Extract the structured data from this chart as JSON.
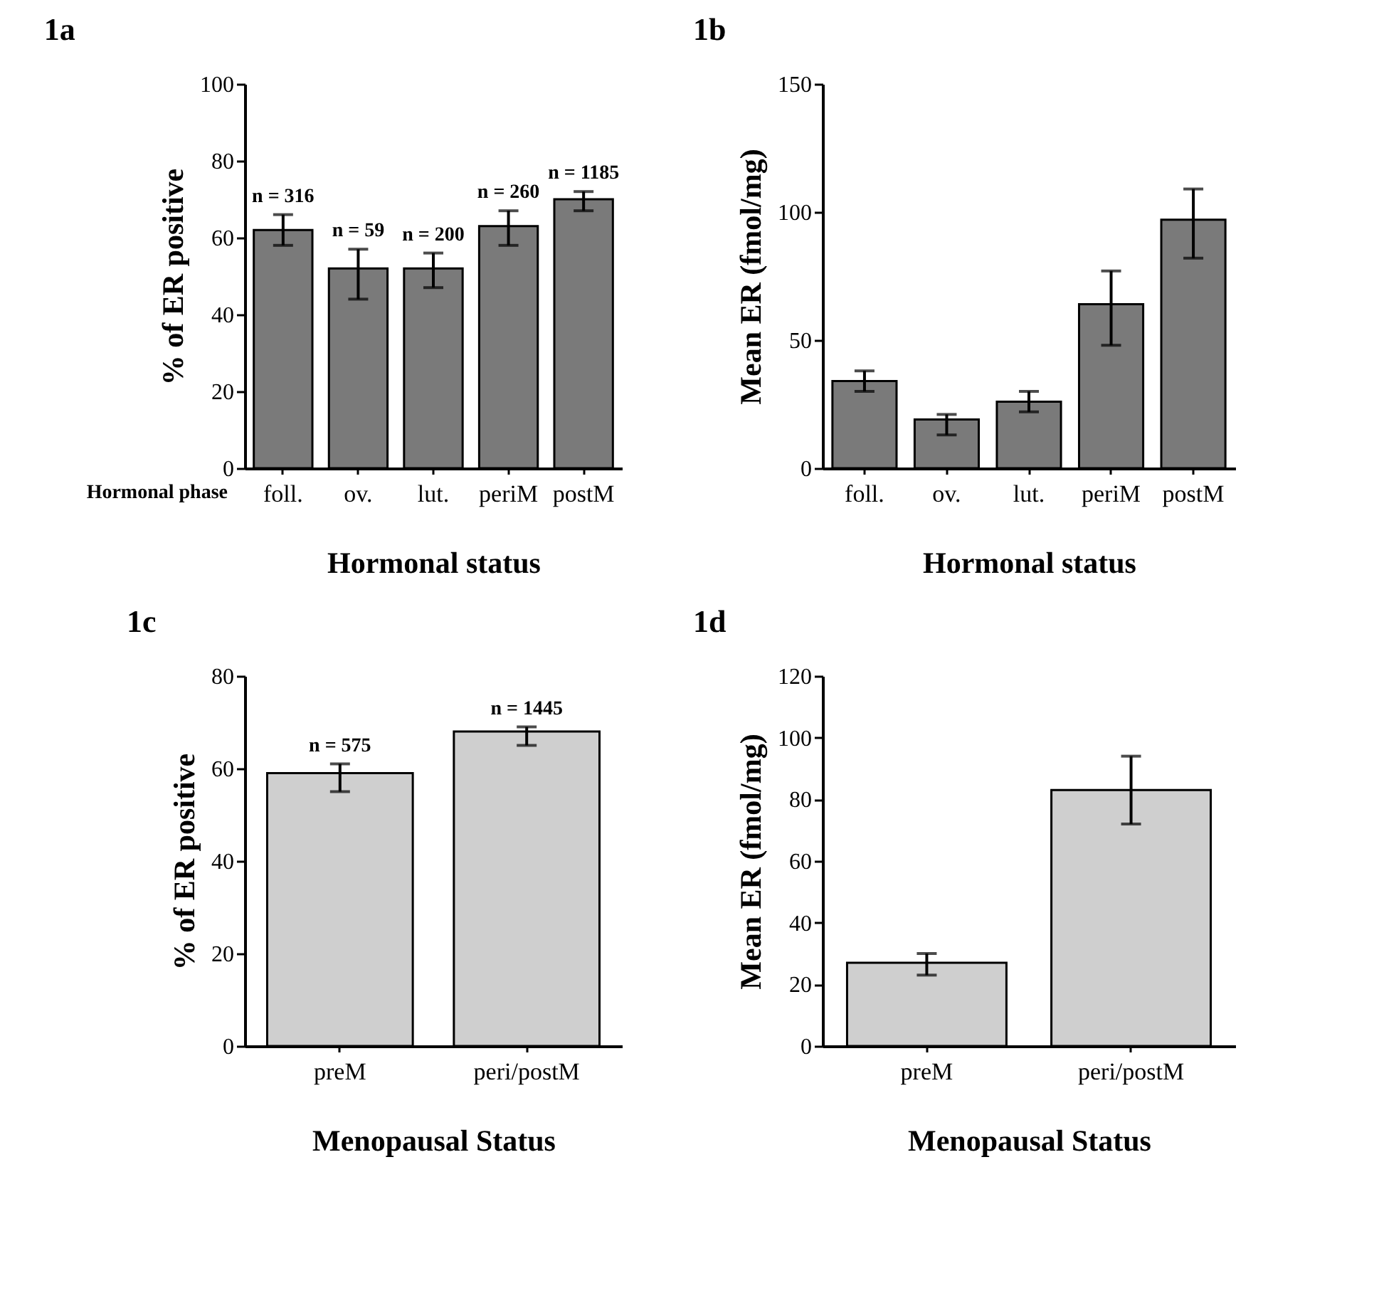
{
  "chart_data": [
    {
      "type": "bar",
      "title": "1a",
      "xlabel": "Hormonal status",
      "ylabel": "% of ER positive",
      "categories": [
        "foll.",
        "ov.",
        "lut.",
        "periM",
        "postM"
      ],
      "values": [
        62,
        52,
        52,
        63,
        70
      ],
      "errors": [
        4,
        [
          44,
          57
        ],
        [
          47,
          56
        ],
        [
          58,
          67
        ],
        [
          67,
          72
        ]
      ],
      "color": "#7a7a7a",
      "ylim": [
        0,
        100
      ],
      "yticks": [
        0,
        20,
        40,
        60,
        80,
        100
      ],
      "annotations": [
        "n = 316",
        "n = 59",
        "n = 200",
        "n = 260",
        "n = 1185",
        "Hormonal phase"
      ]
    },
    {
      "type": "bar",
      "title": "1b",
      "xlabel": "Hormonal status",
      "ylabel": "Mean ER (fmol/mg)",
      "categories": [
        "foll.",
        "ov.",
        "lut.",
        "periM",
        "postM"
      ],
      "values": [
        34,
        19,
        26,
        64,
        97
      ],
      "errors": [
        4,
        [
          13,
          21
        ],
        4,
        [
          48,
          77
        ],
        [
          82,
          109
        ]
      ],
      "color": "#7a7a7a",
      "ylim": [
        0,
        150
      ],
      "yticks": [
        0,
        50,
        100,
        150
      ]
    },
    {
      "type": "bar",
      "title": "1c",
      "xlabel": "Menopausal Status",
      "ylabel": "% of ER positive",
      "categories": [
        "preM",
        "peri/postM"
      ],
      "values": [
        59,
        68
      ],
      "errors": [
        [
          55,
          61
        ],
        [
          65,
          69
        ]
      ],
      "color": "#cfcfcf",
      "ylim": [
        0,
        80
      ],
      "yticks": [
        0,
        20,
        40,
        60,
        80
      ],
      "annotations": [
        "n = 575",
        "n = 1445"
      ]
    },
    {
      "type": "bar",
      "title": "1d",
      "xlabel": "Menopausal Status",
      "ylabel": "Mean ER (fmol/mg)",
      "categories": [
        "preM",
        "peri/postM"
      ],
      "values": [
        27,
        83
      ],
      "errors": [
        [
          23,
          30
        ],
        [
          72,
          94
        ]
      ],
      "color": "#cfcfcf",
      "ylim": [
        0,
        120
      ],
      "yticks": [
        0,
        20,
        40,
        60,
        80,
        100,
        120
      ]
    }
  ]
}
